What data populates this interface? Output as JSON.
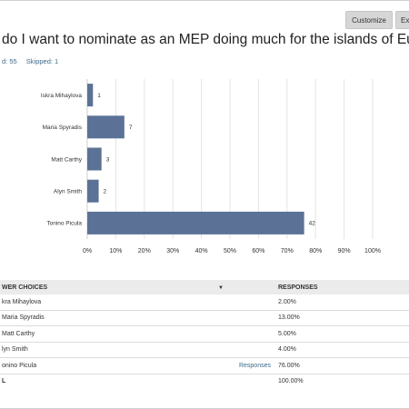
{
  "toolbar": {
    "customize_label": "Customize",
    "export_label": "Ex"
  },
  "question": {
    "title": "do I want to nominate as an MEP doing much for the islands of Euro",
    "answered": "d: 55",
    "skipped": "Skipped: 1"
  },
  "chart_data": {
    "type": "bar",
    "orientation": "horizontal",
    "categories": [
      "Iskra Mihaylova",
      "Maria Spyradis",
      "Matt Carthy",
      "Alyn Smith",
      "Tonino Picula"
    ],
    "values": [
      1,
      7,
      3,
      2,
      42
    ],
    "percentages": [
      2,
      13,
      5,
      4,
      76
    ],
    "xlim": [
      0,
      100
    ],
    "xticks": [
      "0%",
      "10%",
      "20%",
      "30%",
      "40%",
      "50%",
      "60%",
      "70%",
      "80%",
      "90%",
      "100%"
    ],
    "bar_color": "#5b7296",
    "grid": true
  },
  "table": {
    "headers": {
      "choices": "WER CHOICES",
      "responses": "RESPONSES"
    },
    "rows": [
      {
        "choice": "kra Mihaylova",
        "link": "",
        "pct": "2.00%"
      },
      {
        "choice": "Maria Spyradis",
        "link": "",
        "pct": "13.00%"
      },
      {
        "choice": "Matt Carthy",
        "link": "",
        "pct": "5.00%"
      },
      {
        "choice": "lyn Smith",
        "link": "",
        "pct": "4.00%"
      },
      {
        "choice": "onino Picula",
        "link": "Responses",
        "pct": "76.00%"
      }
    ],
    "total": {
      "label": "L",
      "pct": "100.00%"
    }
  },
  "icons": {
    "sort": "caret-down-icon"
  }
}
